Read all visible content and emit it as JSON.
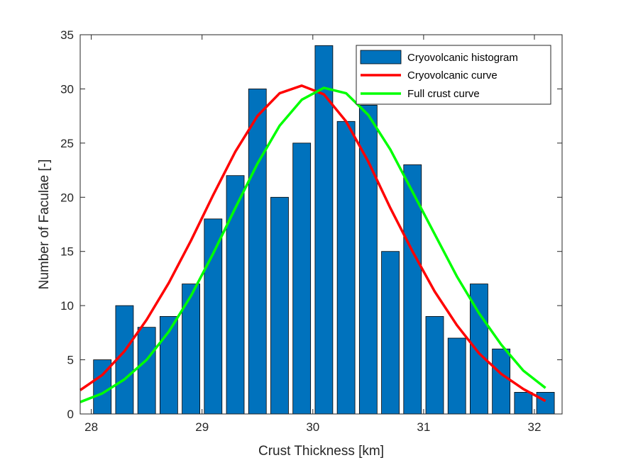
{
  "chart_data": {
    "type": "bar",
    "xlabel": "Crust Thickness [km]",
    "ylabel": "Number of Faculae [-]",
    "xlim": [
      27.9,
      32.25
    ],
    "ylim": [
      0,
      35
    ],
    "xticks": [
      28,
      29,
      30,
      31,
      32
    ],
    "yticks": [
      0,
      5,
      10,
      15,
      20,
      25,
      30,
      35
    ],
    "grid": false,
    "legend_position": "top-right",
    "bar_width": 0.16,
    "histogram": {
      "name": "Cryovolcanic histogram",
      "color": "#0072BD",
      "x": [
        28.1,
        28.3,
        28.5,
        28.7,
        28.9,
        29.1,
        29.3,
        29.5,
        29.7,
        29.9,
        30.1,
        30.3,
        30.5,
        30.7,
        30.9,
        31.1,
        31.3,
        31.5,
        31.7,
        31.9,
        32.1
      ],
      "values": [
        5,
        10,
        8,
        9,
        12,
        18,
        22,
        30,
        20,
        25,
        34,
        27,
        28.5,
        15,
        23,
        9,
        7,
        12,
        6,
        2,
        2
      ]
    },
    "series": [
      {
        "name": "Cryovolcanic curve",
        "color": "#FF0000",
        "x": [
          27.9,
          28.1,
          28.3,
          28.5,
          28.7,
          28.9,
          29.1,
          29.3,
          29.5,
          29.7,
          29.9,
          30.1,
          30.3,
          30.5,
          30.7,
          30.9,
          31.1,
          31.3,
          31.5,
          31.7,
          31.9,
          32.1
        ],
        "values": [
          2.2,
          3.6,
          5.8,
          8.7,
          12.1,
          16.0,
          20.2,
          24.2,
          27.5,
          29.6,
          30.3,
          29.5,
          27.0,
          23.3,
          19.0,
          15.0,
          11.3,
          8.2,
          5.6,
          3.7,
          2.3,
          1.2
        ]
      },
      {
        "name": "Full crust curve",
        "color": "#00FF00",
        "x": [
          27.9,
          28.1,
          28.3,
          28.5,
          28.7,
          28.9,
          29.1,
          29.3,
          29.5,
          29.7,
          29.9,
          30.1,
          30.3,
          30.5,
          30.7,
          30.9,
          31.1,
          31.3,
          31.5,
          31.7,
          31.9,
          32.1
        ],
        "values": [
          1.1,
          1.9,
          3.2,
          5.0,
          7.6,
          10.9,
          14.8,
          19.0,
          23.1,
          26.6,
          29.0,
          30.1,
          29.6,
          27.6,
          24.4,
          20.5,
          16.6,
          12.7,
          9.3,
          6.4,
          4.0,
          2.4
        ]
      }
    ]
  }
}
